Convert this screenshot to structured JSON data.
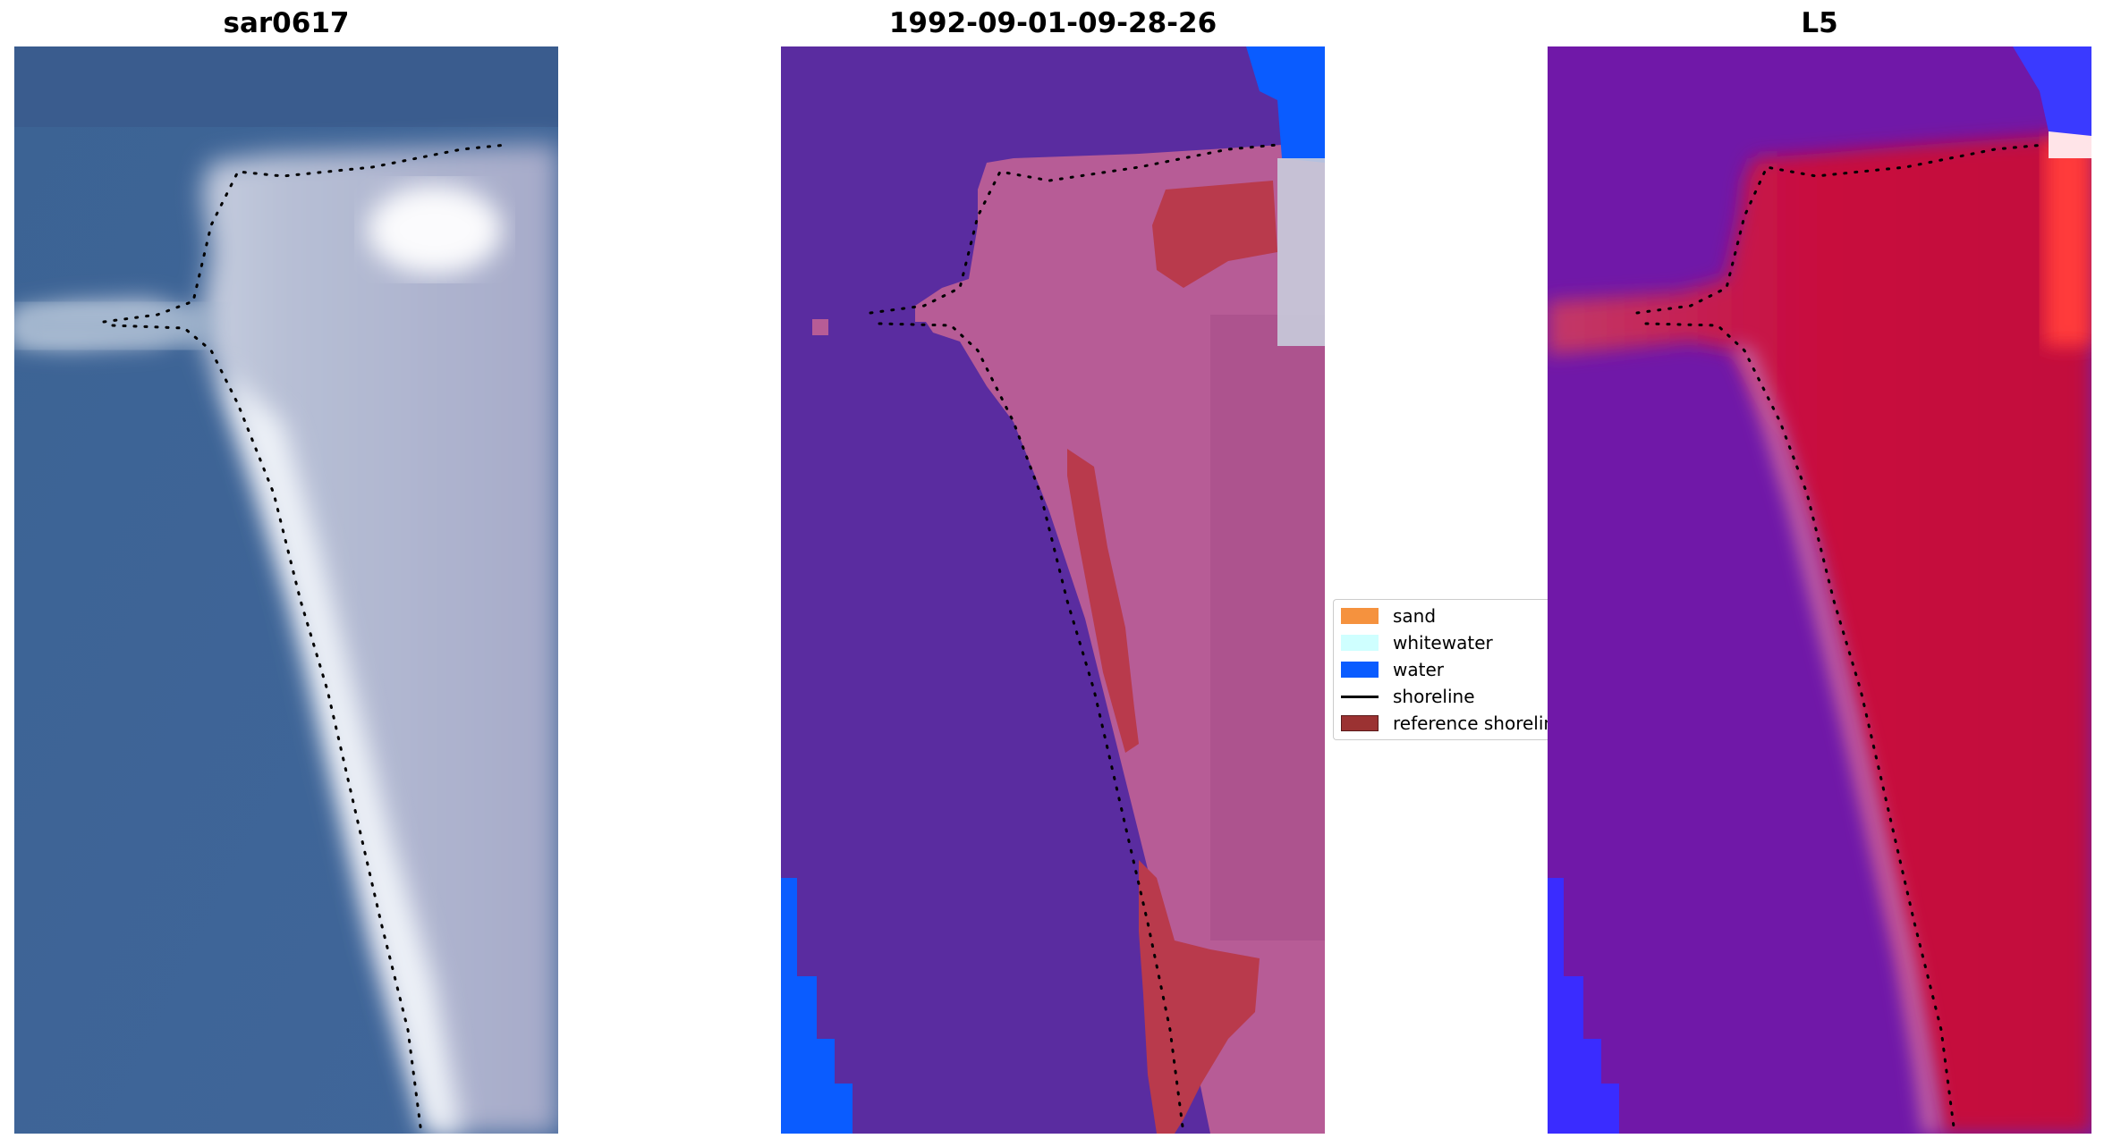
{
  "panels": [
    {
      "title": "sar0617"
    },
    {
      "title": "1992-09-01-09-28-26"
    },
    {
      "title": "L5"
    }
  ],
  "legend": {
    "items": [
      {
        "label": "sand",
        "color": "#f5923e"
      },
      {
        "label": "whitewater",
        "color": "#cfffff"
      },
      {
        "label": "water",
        "color": "#0a5cff"
      },
      {
        "label": "shoreline",
        "color": "#000000"
      },
      {
        "label": "reference shoreline",
        "color": "#9b3232"
      }
    ]
  },
  "colors": {
    "rgb_water": "#3f6797",
    "rgb_sand": "#d9dde8",
    "class_water": "#5a2ca0",
    "class_land": "#b75c96",
    "class_sea_blue": "#0a5cff",
    "index_low": "#6a16a8",
    "index_high": "#c8003a"
  }
}
